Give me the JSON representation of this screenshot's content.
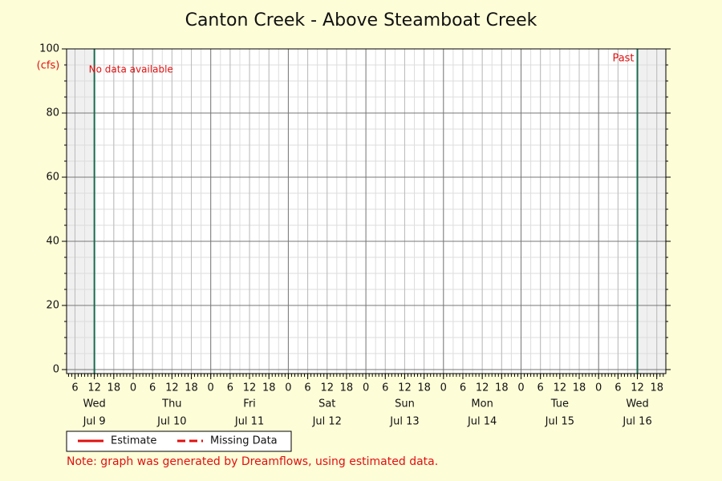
{
  "chart_data": {
    "type": "line",
    "title": "Canton Creek - Above Steamboat Creek",
    "ylabel": "(cfs)",
    "annotations": [
      "No data available",
      "Past"
    ],
    "note": "Note: graph was generated by Dreamflows, using estimated data.",
    "x": [],
    "series": [
      {
        "name": "Estimate",
        "color": "#e01010",
        "dash": false,
        "values": []
      },
      {
        "name": "Missing Data",
        "color": "#e01010",
        "dash": true,
        "values": []
      }
    ],
    "ylim": [
      -1.25,
      100
    ],
    "yticks": [
      0,
      20,
      40,
      60,
      80,
      100
    ],
    "y_minor_step": 5,
    "xlim": [
      3.4,
      188.8
    ],
    "x_minor_step": 3,
    "x_small_tick_step": 1,
    "xticks": [
      6,
      12,
      18,
      {
        "value": 24,
        "label": "0"
      },
      {
        "value": 30,
        "label": "6"
      },
      {
        "value": 36,
        "label": "12"
      },
      {
        "value": 42,
        "label": "18"
      },
      {
        "value": 48,
        "label": "0"
      },
      {
        "value": 54,
        "label": "6"
      },
      {
        "value": 60,
        "label": "12"
      },
      {
        "value": 66,
        "label": "18"
      },
      {
        "value": 72,
        "label": "0"
      },
      {
        "value": 78,
        "label": "6"
      },
      {
        "value": 84,
        "label": "12"
      },
      {
        "value": 90,
        "label": "18"
      },
      {
        "value": 96,
        "label": "0"
      },
      {
        "value": 102,
        "label": "6"
      },
      {
        "value": 108,
        "label": "12"
      },
      {
        "value": 114,
        "label": "18"
      },
      {
        "value": 120,
        "label": "0"
      },
      {
        "value": 126,
        "label": "6"
      },
      {
        "value": 132,
        "label": "12"
      },
      {
        "value": 138,
        "label": "18"
      },
      {
        "value": 144,
        "label": "0"
      },
      {
        "value": 150,
        "label": "6"
      },
      {
        "value": 156,
        "label": "12"
      },
      {
        "value": 162,
        "label": "18"
      },
      {
        "value": 168,
        "label": "0"
      },
      {
        "value": 174,
        "label": "6"
      },
      {
        "value": 180,
        "label": "12"
      },
      {
        "value": 186,
        "label": "18"
      }
    ],
    "days": [
      {
        "value": 12,
        "weekday": "Wed",
        "date": "Jul 9"
      },
      {
        "value": 36,
        "weekday": "Thu",
        "date": "Jul 10"
      },
      {
        "value": 60,
        "weekday": "Fri",
        "date": "Jul 11"
      },
      {
        "value": 84,
        "weekday": "Sat",
        "date": "Jul 12"
      },
      {
        "value": 108,
        "weekday": "Sun",
        "date": "Jul 13"
      },
      {
        "value": 132,
        "weekday": "Mon",
        "date": "Jul 14"
      },
      {
        "value": 156,
        "weekday": "Tue",
        "date": "Jul 15"
      },
      {
        "value": 180,
        "weekday": "Wed",
        "date": "Jul 16"
      }
    ],
    "shade_before": 12,
    "shade_after": 180,
    "grid": true
  }
}
